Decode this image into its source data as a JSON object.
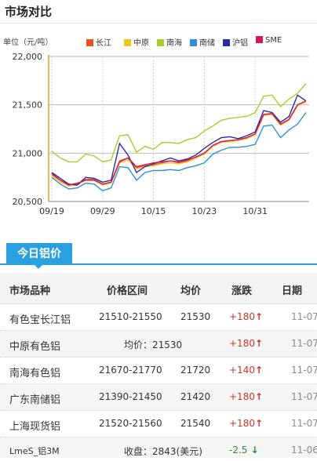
{
  "header": {
    "title": "市场对比"
  },
  "chart_data": {
    "type": "line",
    "title": "",
    "ylabel": "单位（元/吨）",
    "xlabel": "",
    "ylim": [
      20500,
      22000
    ],
    "yticks": [
      20500,
      21000,
      21500,
      22000
    ],
    "ytick_labels": [
      "20,500",
      "21,000",
      "21,500",
      "22,000"
    ],
    "xtick_labels": [
      "09/19",
      "09/29",
      "10/15",
      "10/23",
      "10/31"
    ],
    "xtick_index": [
      0,
      6,
      12,
      18,
      24
    ],
    "n_points": 31,
    "grid": true,
    "legend_position": "top",
    "series": [
      {
        "name": "长江",
        "color": "#e8551c",
        "values": [
          20780,
          20720,
          20670,
          20680,
          20730,
          20730,
          20680,
          20700,
          20920,
          20950,
          20850,
          20870,
          20880,
          20900,
          20920,
          20900,
          20920,
          20960,
          21000,
          21080,
          21120,
          21130,
          21140,
          21160,
          21200,
          21400,
          21410,
          21300,
          21350,
          21500,
          21530
        ]
      },
      {
        "name": "中原",
        "color": "#f0c419",
        "values": [
          20770,
          20700,
          20660,
          20670,
          20720,
          20720,
          20670,
          20690,
          20900,
          20930,
          20840,
          20860,
          20870,
          20890,
          20900,
          20890,
          20910,
          20950,
          20990,
          21070,
          21110,
          21120,
          21130,
          21150,
          21190,
          21390,
          21400,
          21290,
          21340,
          21490,
          21530
        ]
      },
      {
        "name": "南海",
        "color": "#a6cf2a",
        "values": [
          21020,
          20950,
          20910,
          20910,
          20990,
          20970,
          20910,
          20930,
          21180,
          21190,
          21010,
          21070,
          21040,
          21110,
          21110,
          21100,
          21140,
          21160,
          21230,
          21280,
          21340,
          21360,
          21370,
          21380,
          21420,
          21590,
          21600,
          21480,
          21560,
          21620,
          21720
        ]
      },
      {
        "name": "南储",
        "color": "#2e8fd6",
        "values": [
          20750,
          20680,
          20630,
          20640,
          20690,
          20680,
          20610,
          20640,
          20860,
          20850,
          20720,
          20800,
          20820,
          20820,
          20830,
          20820,
          20850,
          20870,
          20900,
          20990,
          21030,
          21060,
          21060,
          21070,
          21090,
          21280,
          21290,
          21160,
          21240,
          21300,
          21420
        ]
      },
      {
        "name": "沪铝",
        "color": "#2a2aa8",
        "values": [
          20800,
          20740,
          20680,
          20670,
          20750,
          20740,
          20700,
          20720,
          21100,
          20980,
          20800,
          20860,
          20890,
          20920,
          20950,
          20920,
          20940,
          20980,
          21050,
          21110,
          21160,
          21170,
          21150,
          21180,
          21220,
          21440,
          21420,
          21320,
          21380,
          21600,
          21540
        ]
      },
      {
        "name": "SME",
        "color": "#d6175a",
        "values": [
          20790,
          20720,
          20670,
          20690,
          20720,
          20720,
          20680,
          20700,
          20910,
          20950,
          20860,
          20880,
          20900,
          20910,
          20920,
          20910,
          20930,
          20960,
          21000,
          21080,
          21120,
          21130,
          21140,
          21160,
          21200,
          21400,
          21410,
          21300,
          21350,
          21500,
          21540
        ]
      }
    ]
  },
  "tab": {
    "label": "今日铝价"
  },
  "table": {
    "headers": [
      "市场品种",
      "价格区间",
      "均价",
      "涨跌",
      "日期"
    ],
    "rows": [
      {
        "name": "有色宝长江铝",
        "range": "21510-21550",
        "avg": "21530",
        "change": "+180",
        "dir": "up",
        "date": "11-07"
      },
      {
        "name": "中原有色铝",
        "merged": "均价：21530",
        "change": "+180",
        "dir": "up",
        "date": "11-07"
      },
      {
        "name": "南海有色铝",
        "range": "21670-21770",
        "avg": "21720",
        "change": "+140",
        "dir": "up",
        "date": "11-07"
      },
      {
        "name": "广东南储铝",
        "range": "21390-21450",
        "avg": "21420",
        "change": "+180",
        "dir": "up",
        "date": "11-07"
      },
      {
        "name": "上海现货铝",
        "range": "21520-21560",
        "avg": "21540",
        "change": "+180",
        "dir": "up",
        "date": "11-07"
      },
      {
        "name": "LmeS_铝3M",
        "merged": "收盘：2843(美元)",
        "change": "-2.5",
        "dir": "down",
        "date": "11-06"
      }
    ]
  }
}
